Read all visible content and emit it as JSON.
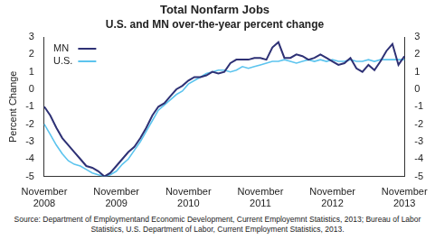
{
  "chart_data": {
    "type": "line",
    "title": "Total Nonfarm Jobs",
    "subtitle": "U.S. and MN over-the-year percent change",
    "y_label": "Percent Change",
    "source": "Source: Department of Employmentand Economic Development, Current Employemnt Statistics, 2013; Bureau of Labor Statistics, U.S. Department of Labor, Current Employment Statistics, 2013.",
    "categories": [
      "November 2008",
      null,
      null,
      null,
      null,
      null,
      null,
      null,
      null,
      null,
      null,
      null,
      "November 2009",
      null,
      null,
      null,
      null,
      null,
      null,
      null,
      null,
      null,
      null,
      null,
      "November 2010",
      null,
      null,
      null,
      null,
      null,
      null,
      null,
      null,
      null,
      null,
      null,
      "November 2011",
      null,
      null,
      null,
      null,
      null,
      null,
      null,
      null,
      null,
      null,
      null,
      "November 2012",
      null,
      null,
      null,
      null,
      null,
      null,
      null,
      null,
      null,
      null,
      null,
      "November 2013"
    ],
    "series": [
      {
        "name": "MN",
        "color": "#2e3175",
        "values": [
          -1.0,
          -1.5,
          -2.2,
          -2.8,
          -3.2,
          -3.6,
          -4.0,
          -4.4,
          -4.5,
          -4.7,
          -5.0,
          -4.8,
          -4.4,
          -4.0,
          -3.6,
          -3.3,
          -2.8,
          -2.2,
          -1.5,
          -1.0,
          -0.8,
          -0.4,
          0.0,
          0.2,
          0.5,
          0.7,
          0.7,
          0.8,
          1.0,
          0.9,
          1.0,
          1.5,
          1.7,
          1.7,
          1.7,
          1.8,
          1.8,
          1.7,
          2.4,
          2.7,
          1.8,
          1.8,
          2.0,
          1.9,
          1.7,
          1.8,
          2.0,
          1.8,
          1.6,
          1.4,
          1.5,
          1.8,
          1.2,
          1.0,
          1.4,
          1.1,
          1.6,
          2.2,
          2.6,
          1.4,
          1.9
        ]
      },
      {
        "name": "U.S.",
        "color": "#5cc4ee",
        "values": [
          -2.0,
          -2.6,
          -3.2,
          -3.7,
          -4.1,
          -4.3,
          -4.4,
          -4.6,
          -4.8,
          -4.9,
          -5.0,
          -4.9,
          -4.7,
          -4.3,
          -4.0,
          -3.5,
          -3.0,
          -2.4,
          -1.8,
          -1.2,
          -0.9,
          -0.6,
          -0.3,
          -0.1,
          0.3,
          0.5,
          0.7,
          0.9,
          1.0,
          1.1,
          1.1,
          1.0,
          1.1,
          1.3,
          1.2,
          1.3,
          1.4,
          1.5,
          1.6,
          1.6,
          1.7,
          1.6,
          1.5,
          1.6,
          1.7,
          1.6,
          1.7,
          1.6,
          1.7,
          1.6,
          1.6,
          1.7,
          1.6,
          1.6,
          1.7,
          1.6,
          1.7,
          1.7,
          1.7,
          1.7,
          1.7
        ]
      }
    ],
    "ylim": [
      -5,
      3
    ],
    "yticks": [
      -5,
      -4,
      -3,
      -2,
      -1,
      0,
      1,
      2,
      3
    ],
    "y2lim": [
      -5,
      3
    ],
    "y2ticks": [
      -5,
      -4,
      -3,
      -2,
      -1,
      0,
      1,
      2,
      3
    ],
    "grid": false,
    "legend": "upper left"
  }
}
